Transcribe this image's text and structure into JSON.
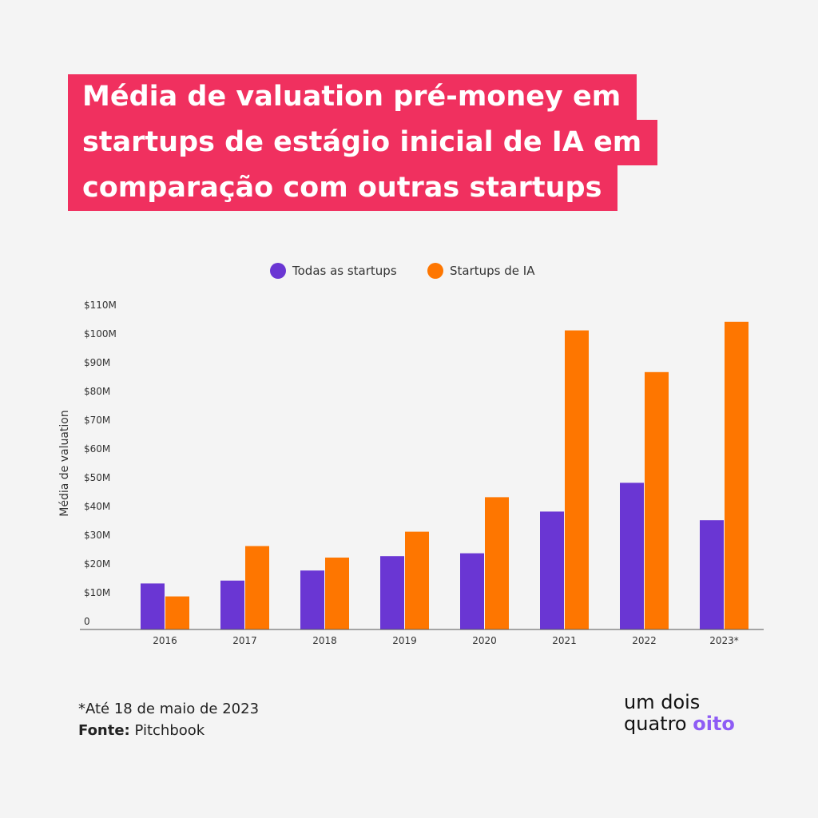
{
  "title_lines": [
    "Média de valuation pré-money em",
    "startups de estágio inicial de IA em",
    "comparação com outras startups"
  ],
  "chart_data": {
    "type": "bar",
    "ylabel": "Média de valuation",
    "categories": [
      "2016",
      "2017",
      "2018",
      "2019",
      "2020",
      "2021",
      "2022",
      "2023*"
    ],
    "y_ticks": [
      "0",
      "$10M",
      "$20M",
      "$30M",
      "$40M",
      "$50M",
      "$60M",
      "$70M",
      "$80M",
      "$90M",
      "$100M",
      "$110M"
    ],
    "ylim": [
      0,
      110
    ],
    "legend_position": "top",
    "series": [
      {
        "name": "Todas as startups",
        "color": "#6a36d3",
        "values": [
          16,
          17,
          20.5,
          25.5,
          26.5,
          41,
          51,
          38
        ]
      },
      {
        "name": "Startups de IA",
        "color": "#fe7600",
        "values": [
          11.5,
          29,
          25,
          34,
          46,
          104,
          89.5,
          107
        ]
      }
    ]
  },
  "footnote": {
    "note": "*Até 18 de maio de 2023",
    "source_label": "Fonte:",
    "source_value": "Pitchbook"
  },
  "logo": {
    "line1": "um dois",
    "line2_a": "quatro",
    "line2_b": "oito",
    "accent_color": "#8e5cf5"
  }
}
